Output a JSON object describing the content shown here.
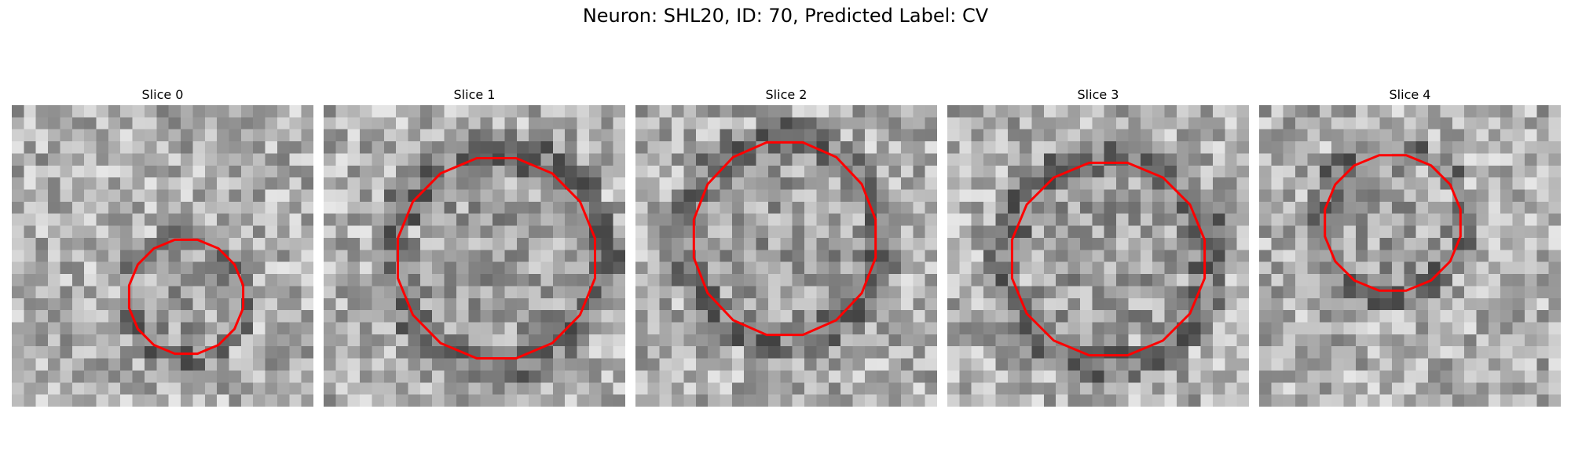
{
  "title": "Neuron: SHL20, ID: 70, Predicted Label: CV",
  "panels": [
    {
      "label": "Slice 0"
    },
    {
      "label": "Slice 1"
    },
    {
      "label": "Slice 2"
    },
    {
      "label": "Slice 3"
    },
    {
      "label": "Slice 4"
    }
  ],
  "contour_color": "#ff0000"
}
